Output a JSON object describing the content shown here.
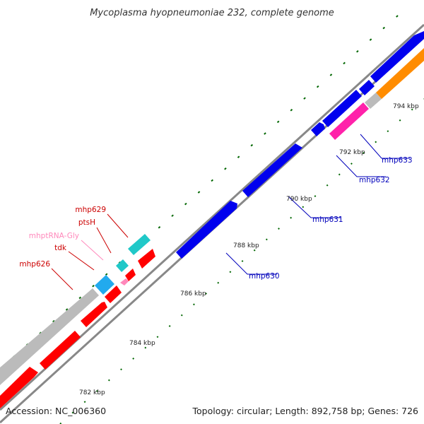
{
  "title": "Mycoplasma hyopneumoniae 232, complete genome",
  "footer": {
    "accession": "Accession: NC_006360",
    "summary": "Topology: circular; Length: 892,758 bp; Genes: 726"
  },
  "colors": {
    "backbone": "#888888",
    "forward_gene": "#0000ee",
    "reverse_gene": "#ff0000",
    "trna": "#20c8c8",
    "trna_alt": "#22aaee",
    "pink_gene": "#ff22aa",
    "orange_gene": "#ff8c00",
    "gray_feature": "#bbbbbb",
    "tick": "#006600",
    "label_red": "#cc0000",
    "label_pink": "#ff88bb",
    "label_blue": "#0000bb"
  },
  "ticks": [
    {
      "label": "782 kbp"
    },
    {
      "label": "784 kbp"
    },
    {
      "label": "786 kbp"
    },
    {
      "label": "788 kbp"
    },
    {
      "label": "790 kbp"
    },
    {
      "label": "792 kbp"
    },
    {
      "label": "794 kbp"
    }
  ],
  "gene_labels": {
    "mhp626": "mhp626",
    "tdk": "tdk",
    "mhptRNA_Gly": "mhptRNA-Gly",
    "ptsH": "ptsH",
    "mhp629": "mhp629",
    "mhp630": "mhp630",
    "mhp631": "mhp631",
    "mhp632": "mhp632",
    "mhp633": "mhp633"
  }
}
